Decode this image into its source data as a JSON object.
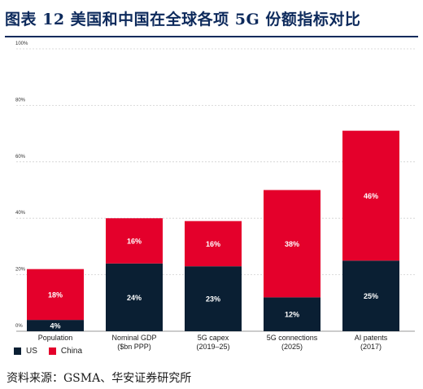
{
  "header": {
    "title": "图表 12  美国和中国在全球各项 5G 份额指标对比"
  },
  "source": {
    "text": "资料来源：GSMA、华安证券研究所"
  },
  "colors": {
    "us": "#0a1f33",
    "china": "#e4002b",
    "grid": "#d0d0d0",
    "title": "#0d2a5c"
  },
  "chart_data": {
    "type": "bar",
    "stacked": true,
    "categories": [
      "Population",
      "Nominal GDP\n($bn PPP)",
      "5G capex\n(2019–25)",
      "5G connections\n(2025)",
      "AI patents\n(2017)"
    ],
    "series": [
      {
        "name": "US",
        "values": [
          4,
          24,
          23,
          12,
          25
        ],
        "labels": [
          "4%",
          "24%",
          "23%",
          "12%",
          "25%"
        ]
      },
      {
        "name": "China",
        "values": [
          18,
          16,
          16,
          38,
          46
        ],
        "labels": [
          "18%",
          "16%",
          "16%",
          "38%",
          "46%"
        ]
      }
    ],
    "ylim": [
      0,
      100
    ],
    "yticks": [
      0,
      20,
      40,
      60,
      80,
      100
    ],
    "ytick_labels": [
      "0%",
      "20%",
      "40%",
      "60%",
      "80%",
      "100%"
    ],
    "grid": true,
    "legend": "bottom-left",
    "xlabel": "",
    "ylabel": ""
  }
}
